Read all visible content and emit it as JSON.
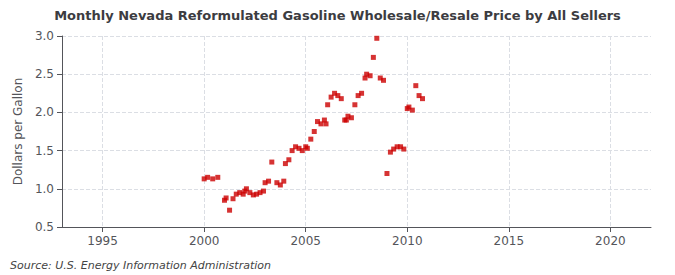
{
  "chart_data": {
    "type": "scatter",
    "title": "Monthly Nevada Reformulated Gasoline Wholesale/Resale Price by All Sellers",
    "ylabel": "Dollars per Gallon",
    "annotations": [
      "Source: U.S. Energy Information Administration"
    ],
    "xlim": [
      1993,
      2022
    ],
    "ylim": [
      0.5,
      3.0
    ],
    "xticks": [
      1995,
      2000,
      2005,
      2010,
      2015,
      2020
    ],
    "yticks": [
      0.5,
      {
        "value": 1.0,
        "label": "1.0"
      },
      1.5,
      {
        "value": 2.0,
        "label": "2.0"
      },
      2.5,
      {
        "value": 3.0,
        "label": "3.0"
      }
    ],
    "grid": true,
    "color": "#cc0000",
    "marker": "square",
    "x": [
      2000.0,
      2000.17,
      2000.42,
      2000.67,
      2001.0,
      2001.08,
      2001.25,
      2001.42,
      2001.58,
      2001.75,
      2001.92,
      2002.0,
      2002.08,
      2002.25,
      2002.42,
      2002.58,
      2002.75,
      2002.92,
      2003.0,
      2003.17,
      2003.33,
      2003.58,
      2003.75,
      2003.92,
      2004.0,
      2004.17,
      2004.33,
      2004.5,
      2004.67,
      2004.83,
      2005.0,
      2005.08,
      2005.25,
      2005.42,
      2005.58,
      2005.75,
      2005.92,
      2006.0,
      2006.08,
      2006.25,
      2006.42,
      2006.58,
      2006.75,
      2006.92,
      2007.0,
      2007.08,
      2007.25,
      2007.42,
      2007.58,
      2007.75,
      2007.92,
      2008.0,
      2008.17,
      2008.33,
      2008.5,
      2008.67,
      2008.83,
      2009.0,
      2009.17,
      2009.33,
      2009.5,
      2009.67,
      2009.83,
      2010.0,
      2010.08,
      2010.25,
      2010.42,
      2010.58,
      2010.75
    ],
    "values": [
      1.13,
      1.15,
      1.13,
      1.15,
      0.85,
      0.88,
      0.72,
      0.87,
      0.93,
      0.95,
      0.93,
      0.97,
      1.0,
      0.95,
      0.92,
      0.93,
      0.95,
      0.97,
      1.08,
      1.1,
      1.35,
      1.08,
      1.05,
      1.1,
      1.33,
      1.38,
      1.5,
      1.55,
      1.53,
      1.5,
      1.55,
      1.53,
      1.65,
      1.75,
      1.88,
      1.85,
      1.9,
      1.85,
      2.1,
      2.2,
      2.25,
      2.22,
      2.18,
      1.9,
      1.9,
      1.95,
      1.93,
      2.1,
      2.22,
      2.25,
      2.45,
      2.5,
      2.48,
      2.72,
      2.97,
      2.45,
      2.42,
      1.2,
      1.48,
      1.52,
      1.55,
      1.55,
      1.52,
      2.05,
      2.07,
      2.03,
      2.35,
      2.22,
      2.18
    ]
  }
}
